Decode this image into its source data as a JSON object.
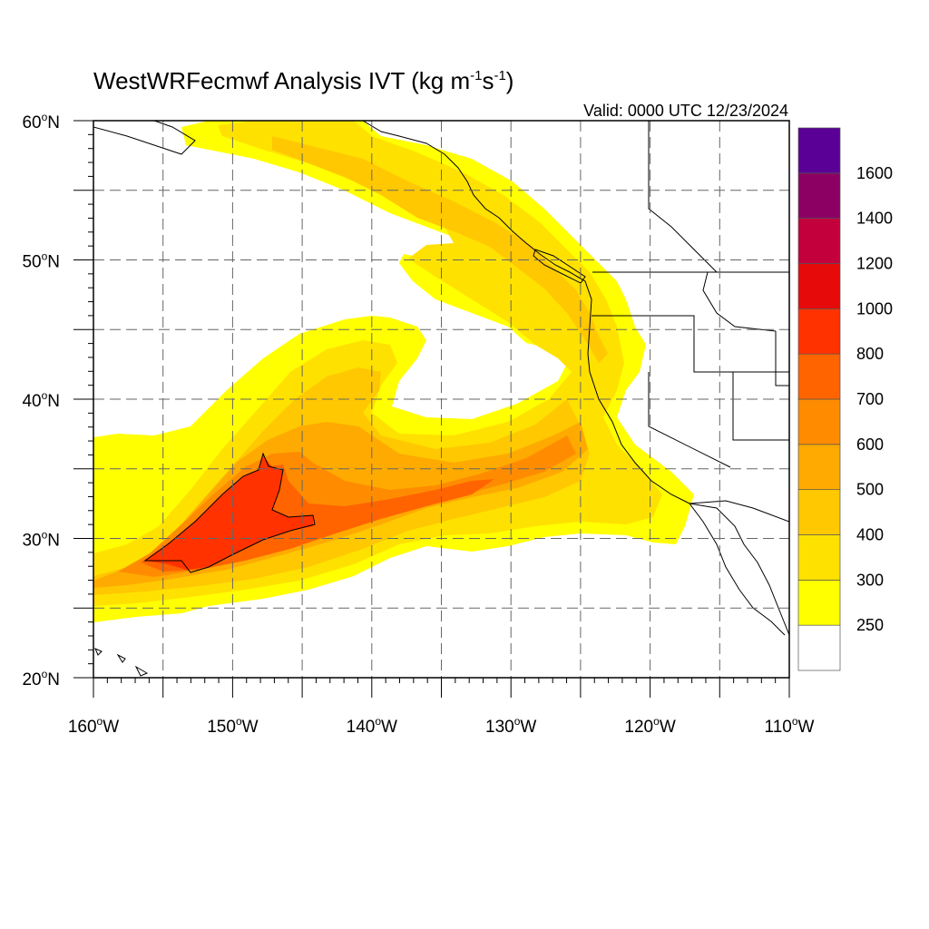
{
  "title": {
    "main": "WestWRFecmwf Analysis IVT (kg m",
    "sup1": "-1",
    "mid": "s",
    "sup2": "-1",
    "end": ")"
  },
  "valid_time": "Valid: 0000 UTC 12/23/2024",
  "lon_labels": [
    {
      "lon": -160,
      "base": "160",
      "hem": "W"
    },
    {
      "lon": -150,
      "base": "150",
      "hem": "W"
    },
    {
      "lon": -140,
      "base": "140",
      "hem": "W"
    },
    {
      "lon": -130,
      "base": "130",
      "hem": "W"
    },
    {
      "lon": -120,
      "base": "120",
      "hem": "W"
    },
    {
      "lon": -110,
      "base": "110",
      "hem": "W"
    }
  ],
  "lat_labels": [
    {
      "lat": 60,
      "base": "60",
      "hem": "N"
    },
    {
      "lat": 50,
      "base": "50",
      "hem": "N"
    },
    {
      "lat": 40,
      "base": "40",
      "hem": "N"
    },
    {
      "lat": 30,
      "base": "30",
      "hem": "N"
    },
    {
      "lat": 20,
      "base": "20",
      "hem": "N"
    }
  ],
  "extent": {
    "lon_min": -160,
    "lon_max": -110,
    "lat_min": 20,
    "lat_max": 60
  },
  "colorbar": {
    "levels": [
      250,
      300,
      400,
      500,
      600,
      700,
      800,
      1000,
      1200,
      1400,
      1600
    ],
    "level_labels": [
      "250",
      "300",
      "400",
      "500",
      "600",
      "700",
      "800",
      "1000",
      "1200",
      "1400",
      "1600"
    ],
    "colors": [
      "#ffffff",
      "#ffff00",
      "#ffe100",
      "#ffc800",
      "#ffaa00",
      "#ff8c00",
      "#ff6400",
      "#ff3200",
      "#e60a0a",
      "#c3003c",
      "#8c0064",
      "#5a0096"
    ]
  },
  "ivt_field": {
    "units": "kg m-1 s-1",
    "contour_outline_level": 800,
    "features": [
      {
        "feature": "atmospheric river core",
        "center_lon": -150.5,
        "center_lat": 31,
        "max_level": 800
      },
      {
        "feature": "atmospheric river plume to California",
        "start_lon": -145,
        "end_lon": -125,
        "lat": 33,
        "max_level": 700
      },
      {
        "feature": "northern band toward British Columbia",
        "start_lon": -150,
        "end_lon": -125,
        "lat": 54,
        "max_level": 400
      }
    ]
  }
}
